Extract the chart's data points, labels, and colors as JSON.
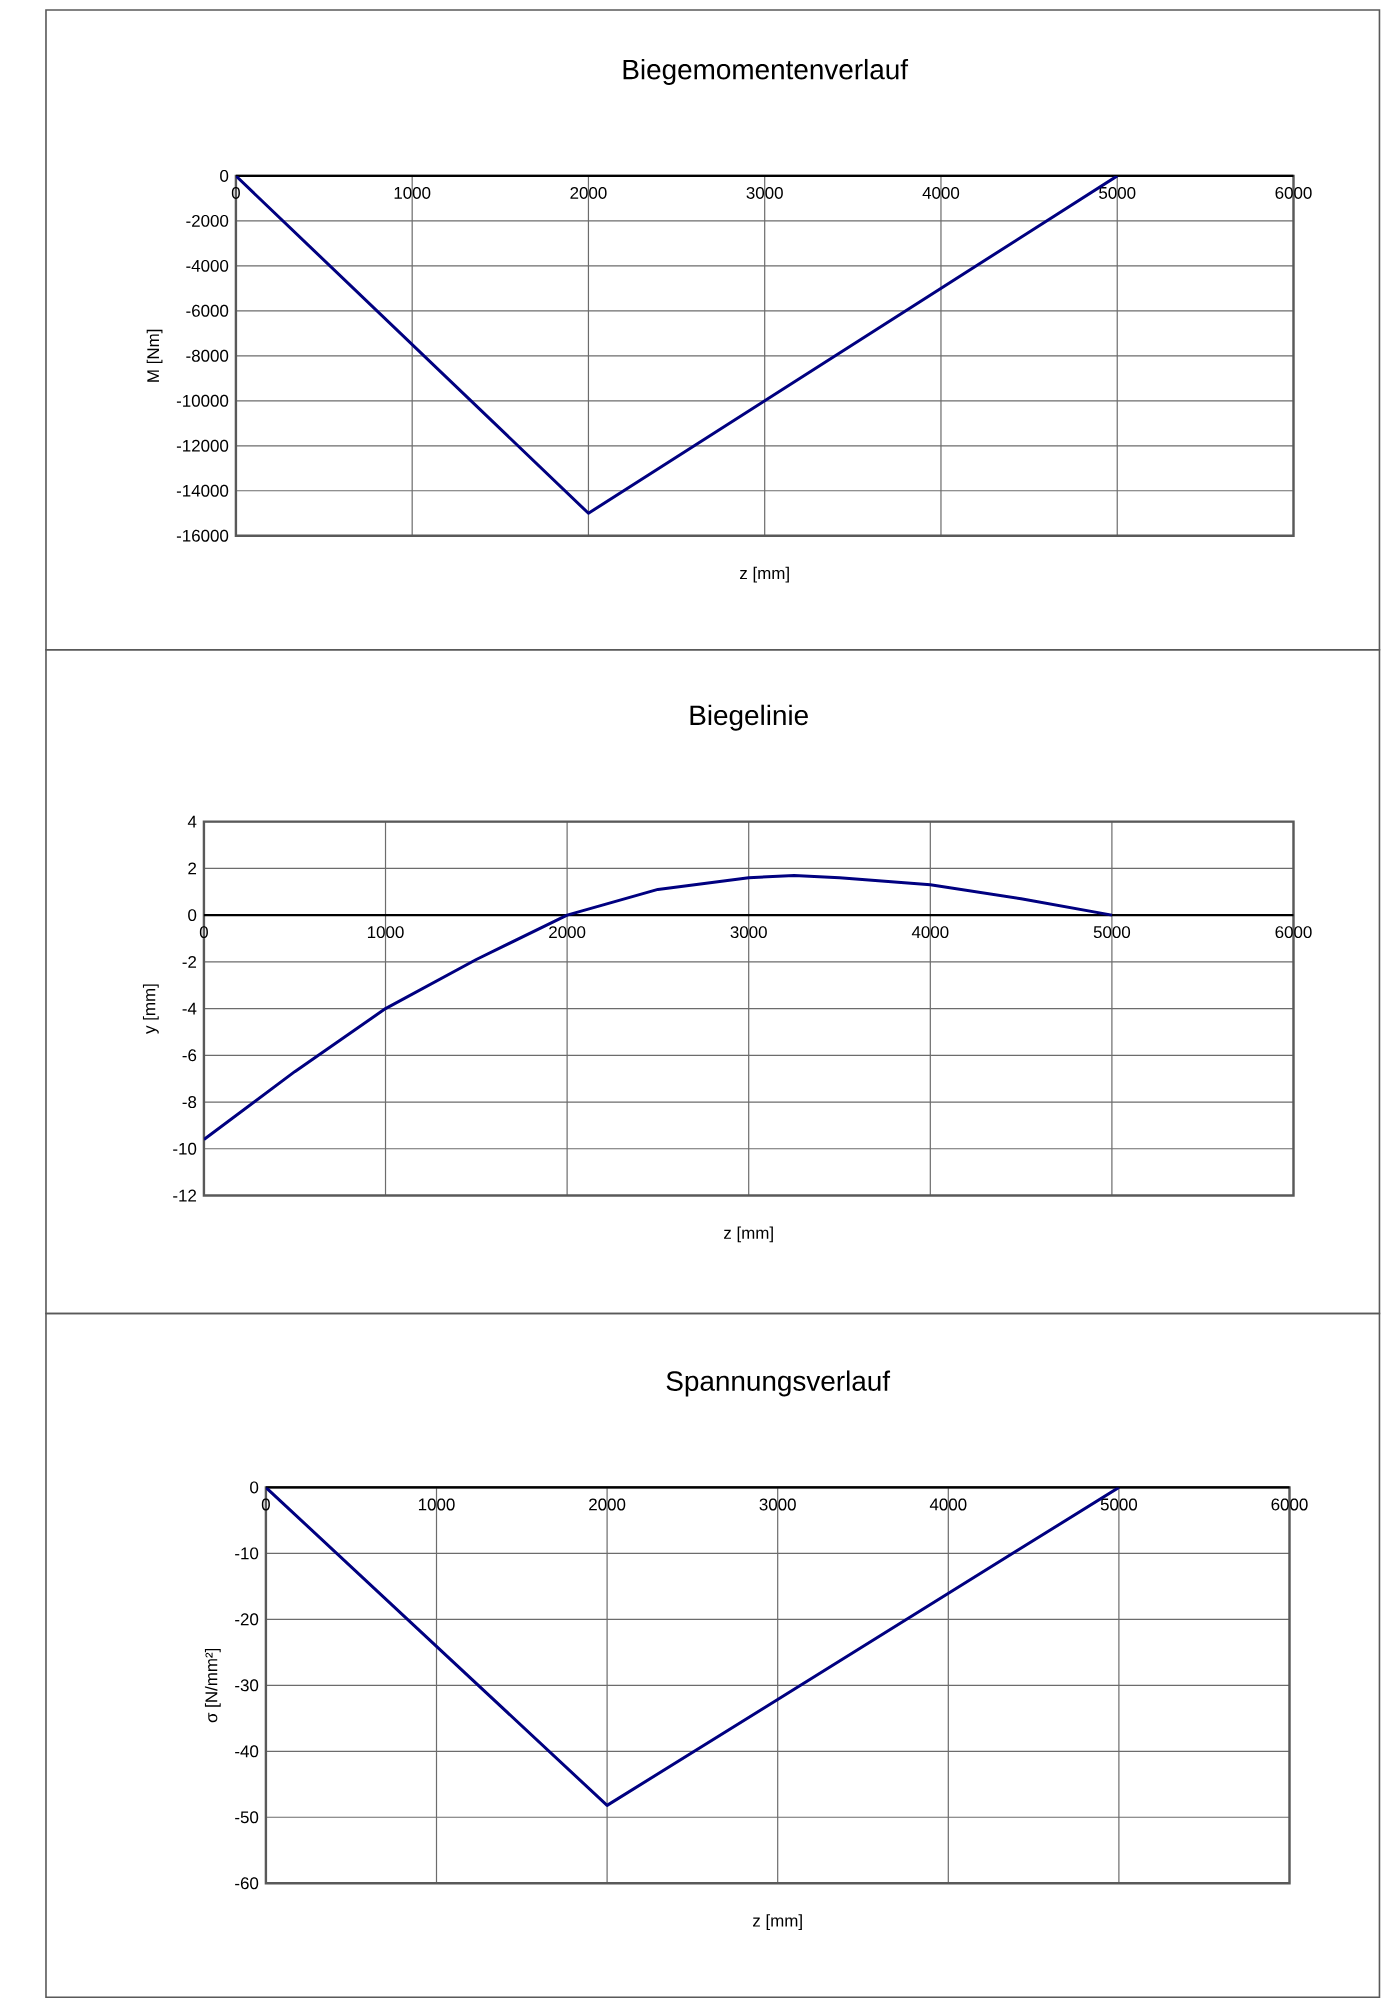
{
  "chart_data": [
    {
      "type": "line",
      "title": "Biegemomentenverlauf",
      "xlabel": "z [mm]",
      "ylabel": "M [Nm]",
      "x": [
        0,
        2000,
        5000
      ],
      "values": [
        0,
        -15000,
        0
      ],
      "color": "#000080",
      "xlim": [
        0,
        6000
      ],
      "ylim": [
        -16000,
        0
      ],
      "xticks": [
        0,
        1000,
        2000,
        3000,
        4000,
        5000,
        6000
      ],
      "yticks": [
        -16000,
        -14000,
        -12000,
        -10000,
        -8000,
        -6000,
        -4000,
        -2000,
        0
      ],
      "grid": true
    },
    {
      "type": "line",
      "title": "Biegelinie",
      "xlabel": "z [mm]",
      "ylabel": "y [mm]",
      "x": [
        0,
        500,
        1000,
        1500,
        2000,
        2500,
        3000,
        3250,
        3500,
        4000,
        4500,
        5000
      ],
      "values": [
        -9.6,
        -6.7,
        -4.0,
        -1.9,
        0,
        1.1,
        1.6,
        1.7,
        1.6,
        1.3,
        0.7,
        0
      ],
      "color": "#000080",
      "xlim": [
        0,
        6000
      ],
      "ylim": [
        -12,
        4
      ],
      "xticks": [
        0,
        1000,
        2000,
        3000,
        4000,
        5000,
        6000
      ],
      "yticks": [
        -12,
        -10,
        -8,
        -6,
        -4,
        -2,
        0,
        2,
        4
      ],
      "grid": true
    },
    {
      "type": "line",
      "title": "Spannungsverlauf",
      "xlabel": "z [mm]",
      "ylabel": "σ [N/mm²]",
      "x": [
        0,
        2000,
        5000
      ],
      "values": [
        0,
        -48.2,
        0
      ],
      "color": "#000080",
      "xlim": [
        0,
        6000
      ],
      "ylim": [
        -60,
        0
      ],
      "xticks": [
        0,
        1000,
        2000,
        3000,
        4000,
        5000,
        6000
      ],
      "yticks": [
        -60,
        -50,
        -40,
        -30,
        -20,
        -10,
        0
      ],
      "grid": true
    }
  ]
}
